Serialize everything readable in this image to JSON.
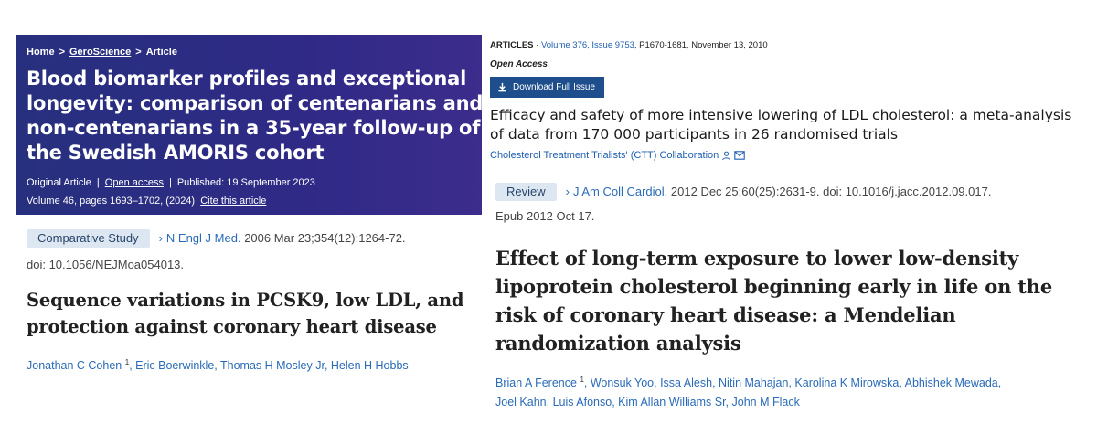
{
  "gero": {
    "breadcrumb": [
      "Home",
      "GeroScience",
      "Article"
    ],
    "separator": ">",
    "title": "Blood biomarker profiles and exceptional longevity: comparison of centenarians and non-centenarians in a 35-year follow-up of the Swedish AMORIS cohort",
    "article_type": "Original Article",
    "open_access": "Open access",
    "published": "Published: 19 September 2023",
    "volume_pages": "Volume 46, pages 1693–1702, (2024)",
    "cite_link": "Cite this article",
    "divider": "|"
  },
  "lancet": {
    "kind": "ARTICLES",
    "volume": "Volume 376, Issue 9753",
    "pages_date": ", P1670-1681, November 13, 2010",
    "open_access": "Open Access",
    "download_label": "Download Full Issue",
    "title": "Efficacy and safety of more intensive lowering of LDL cholesterol: a meta-analysis of data from 170 000 participants in 26 randomised trials",
    "author": "Cholesterol Treatment Trialists' (CTT) Collaboration"
  },
  "pubmed1": {
    "badge": "Comparative Study",
    "journal": "N Engl J Med.",
    "citation": "2006 Mar 23;354(12):1264-72.",
    "doi": "doi: 10.1056/NEJMoa054013.",
    "title": "Sequence variations in PCSK9, low LDL, and protection against coronary heart disease",
    "authors": [
      {
        "name": "Jonathan C Cohen",
        "sup": "1"
      },
      {
        "name": "Eric Boerwinkle"
      },
      {
        "name": "Thomas H Mosley Jr"
      },
      {
        "name": "Helen H Hobbs"
      }
    ]
  },
  "pubmed2": {
    "badge": "Review",
    "journal": "J Am Coll Cardiol.",
    "citation": "2012 Dec 25;60(25):2631-9. doi: 10.1016/j.jacc.2012.09.017.",
    "epub": "Epub 2012 Oct 17.",
    "title": "Effect of long-term exposure to lower low-density lipoprotein cholesterol beginning early in life on the risk of coronary heart disease: a Mendelian randomization analysis",
    "authors_line1": [
      {
        "name": "Brian A Ference",
        "sup": "1"
      },
      {
        "name": "Wonsuk Yoo"
      },
      {
        "name": "Issa Alesh"
      },
      {
        "name": "Nitin Mahajan"
      },
      {
        "name": "Karolina K Mirowska"
      },
      {
        "name": "Abhishek Mewada"
      }
    ],
    "authors_line2": [
      {
        "name": "Joel Kahn"
      },
      {
        "name": "Luis Afonso"
      },
      {
        "name": "Kim Allan Williams Sr"
      },
      {
        "name": "John M Flack"
      }
    ]
  },
  "colors": {
    "gero_banner": "#2f2a86",
    "link_blue": "#2a6bb8",
    "badge_bg": "#dde7f1",
    "lancet_button": "#1e4e8c"
  }
}
